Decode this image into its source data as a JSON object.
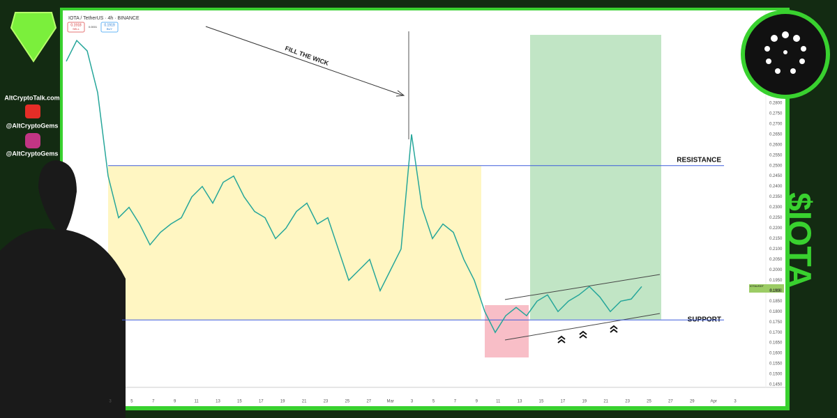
{
  "chart_data": {
    "type": "line",
    "header": "IOTA / TetherUS · 4h · BINANCE",
    "sell_price": "0.1918",
    "sell_label": "SELL",
    "spread": "0.0001",
    "buy_price": "0.1919",
    "buy_label": "BUY",
    "symbol": "IOTAUSDT",
    "last_price": 0.1916,
    "annotations": {
      "wick": "FILL THE WICK",
      "resistance": "RESISTANCE",
      "support": "SUPPORT",
      "ticker": "$IOTA"
    },
    "levels": {
      "resistance": 0.25,
      "support": 0.176
    },
    "zones": {
      "range": [
        0.176,
        0.25
      ],
      "stop": [
        0.158,
        0.1831
      ],
      "target": [
        0.1762,
        0.3127
      ]
    },
    "sidebar": {
      "site": "AltCryptoTalk.com",
      "youtube": "@AltCryptoGems",
      "instagram": "@AltCryptoGems"
    },
    "series": [
      {
        "name": "IOTAUSDT",
        "color": "#26a69a",
        "values": [
          0.3,
          0.31,
          0.305,
          0.285,
          0.245,
          0.225,
          0.23,
          0.222,
          0.212,
          0.218,
          0.222,
          0.225,
          0.235,
          0.24,
          0.232,
          0.242,
          0.245,
          0.235,
          0.228,
          0.225,
          0.215,
          0.22,
          0.228,
          0.232,
          0.222,
          0.225,
          0.21,
          0.195,
          0.2,
          0.205,
          0.19,
          0.2,
          0.21,
          0.265,
          0.23,
          0.215,
          0.222,
          0.218,
          0.205,
          0.195,
          0.18,
          0.17,
          0.178,
          0.182,
          0.178,
          0.185,
          0.188,
          0.18,
          0.185,
          0.188,
          0.192,
          0.187,
          0.18,
          0.185,
          0.186,
          0.192
        ]
      }
    ],
    "x_labels": [
      "3",
      "5",
      "7",
      "9",
      "11",
      "13",
      "15",
      "17",
      "19",
      "21",
      "23",
      "25",
      "27",
      "Mar",
      "3",
      "5",
      "7",
      "9",
      "11",
      "13",
      "15",
      "17",
      "19",
      "21",
      "23",
      "25",
      "27",
      "29",
      "Apr",
      "3"
    ],
    "ylim": [
      0.144,
      0.3244
    ],
    "yticks": [
      {
        "value": 0.145,
        "label": "0.1450"
      },
      {
        "value": 0.15,
        "label": "0.1500"
      },
      {
        "value": 0.155,
        "label": "0.1550"
      },
      {
        "value": 0.16,
        "label": "0.1600"
      },
      {
        "value": 0.165,
        "label": "0.1650"
      },
      {
        "value": 0.17,
        "label": "0.1700"
      },
      {
        "value": 0.175,
        "label": "0.1750"
      },
      {
        "value": 0.18,
        "label": "0.1800"
      },
      {
        "value": 0.185,
        "label": "0.1850"
      },
      {
        "value": 0.19,
        "label": "0.1900"
      },
      {
        "value": 0.195,
        "label": "0.1950"
      },
      {
        "value": 0.2,
        "label": "0.2000"
      },
      {
        "value": 0.205,
        "label": "0.2050"
      },
      {
        "value": 0.21,
        "label": "0.2100"
      },
      {
        "value": 0.215,
        "label": "0.2150"
      },
      {
        "value": 0.22,
        "label": "0.2200"
      },
      {
        "value": 0.225,
        "label": "0.2250"
      },
      {
        "value": 0.23,
        "label": "0.2300"
      },
      {
        "value": 0.235,
        "label": "0.2350"
      },
      {
        "value": 0.24,
        "label": "0.2400"
      },
      {
        "value": 0.245,
        "label": "0.2450"
      },
      {
        "value": 0.25,
        "label": "0.2500"
      },
      {
        "value": 0.255,
        "label": "0.2550"
      },
      {
        "value": 0.26,
        "label": "0.2600"
      },
      {
        "value": 0.265,
        "label": "0.2650"
      },
      {
        "value": 0.27,
        "label": "0.2700"
      },
      {
        "value": 0.275,
        "label": "0.2750"
      },
      {
        "value": 0.28,
        "label": "0.2800"
      }
    ]
  }
}
